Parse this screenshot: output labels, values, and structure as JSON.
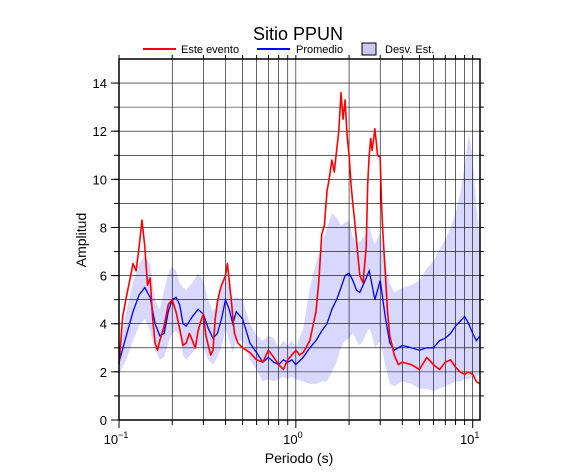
{
  "chart_data": {
    "type": "line",
    "title": "Sitio PPUN",
    "xlabel": "Periodo (s)",
    "ylabel": "Amplitud",
    "x_scale": "log",
    "xlim": [
      0.1,
      11
    ],
    "ylim": [
      0,
      15
    ],
    "y_ticks": [
      0,
      2,
      4,
      6,
      8,
      10,
      12,
      14
    ],
    "y_tick_labels": [
      "0",
      "2",
      "4",
      "6",
      "8",
      "10",
      "12",
      "14"
    ],
    "x_ticks": [
      0.1,
      1,
      10
    ],
    "x_tick_labels": [
      {
        "base": "10",
        "exp": "−1"
      },
      {
        "base": "10",
        "exp": "0"
      },
      {
        "base": "10",
        "exp": "1"
      }
    ],
    "grid": true,
    "legend_position": "top",
    "legend": {
      "event_label": "Este evento",
      "mean_label": "Promedio",
      "std_label": "Desv. Est."
    },
    "colors": {
      "event": "#ff0000",
      "mean": "#0000ff",
      "std_fill": "#d8d8ff",
      "std_legend_fill": "#c8c8f0",
      "grid": "#000000"
    },
    "series": [
      {
        "name": "Este evento",
        "x": [
          0.1,
          0.105,
          0.11,
          0.115,
          0.12,
          0.125,
          0.13,
          0.135,
          0.14,
          0.145,
          0.15,
          0.155,
          0.16,
          0.165,
          0.17,
          0.18,
          0.19,
          0.2,
          0.21,
          0.22,
          0.23,
          0.24,
          0.25,
          0.26,
          0.27,
          0.28,
          0.29,
          0.3,
          0.31,
          0.32,
          0.33,
          0.34,
          0.35,
          0.36,
          0.37,
          0.38,
          0.39,
          0.4,
          0.41,
          0.42,
          0.43,
          0.44,
          0.45,
          0.47,
          0.5,
          0.55,
          0.6,
          0.65,
          0.7,
          0.75,
          0.8,
          0.85,
          0.9,
          0.95,
          1.0,
          1.05,
          1.1,
          1.2,
          1.3,
          1.35,
          1.4,
          1.45,
          1.5,
          1.55,
          1.6,
          1.65,
          1.7,
          1.75,
          1.8,
          1.85,
          1.9,
          1.95,
          2.0,
          2.05,
          2.1,
          2.15,
          2.2,
          2.3,
          2.4,
          2.5,
          2.55,
          2.6,
          2.65,
          2.7,
          2.8,
          2.9,
          3.0,
          3.05,
          3.1,
          3.2,
          3.3,
          3.4,
          3.5,
          3.6,
          3.8,
          4.0,
          4.5,
          5.0,
          5.5,
          6.0,
          6.5,
          7.0,
          7.5,
          8.0,
          8.5,
          9.0,
          9.5,
          10.0,
          10.5,
          11.0
        ],
        "y": [
          2.3,
          4.3,
          5.1,
          5.8,
          6.5,
          6.2,
          7.2,
          8.3,
          7.2,
          5.6,
          5.9,
          4.2,
          3.2,
          2.9,
          3.3,
          3.9,
          4.8,
          5.0,
          4.5,
          3.8,
          3.1,
          3.2,
          3.6,
          3.3,
          3.0,
          3.7,
          4.1,
          4.4,
          3.5,
          3.1,
          2.7,
          2.9,
          4.2,
          4.9,
          5.3,
          5.6,
          5.8,
          6.0,
          6.5,
          5.8,
          5.1,
          4.3,
          3.6,
          3.2,
          3.0,
          2.8,
          2.5,
          2.4,
          2.9,
          2.6,
          2.3,
          2.1,
          2.5,
          2.7,
          2.9,
          2.7,
          2.8,
          3.3,
          4.5,
          5.8,
          7.7,
          8.1,
          9.5,
          10.1,
          10.8,
          10.3,
          11.2,
          12.0,
          13.6,
          12.5,
          13.3,
          11.8,
          11.0,
          9.8,
          9.0,
          8.3,
          7.5,
          6.0,
          5.7,
          7.2,
          9.8,
          11.0,
          11.7,
          11.2,
          12.1,
          11.0,
          10.9,
          9.0,
          7.9,
          6.2,
          4.5,
          3.5,
          3.1,
          2.7,
          2.3,
          2.4,
          2.3,
          2.1,
          2.6,
          2.3,
          2.1,
          2.4,
          2.5,
          2.2,
          2.0,
          1.9,
          2.0,
          1.9,
          1.6,
          1.5
        ]
      },
      {
        "name": "Promedio",
        "x": [
          0.1,
          0.11,
          0.12,
          0.13,
          0.14,
          0.15,
          0.16,
          0.17,
          0.18,
          0.19,
          0.2,
          0.21,
          0.22,
          0.23,
          0.24,
          0.26,
          0.28,
          0.3,
          0.32,
          0.34,
          0.36,
          0.38,
          0.4,
          0.42,
          0.44,
          0.46,
          0.5,
          0.55,
          0.6,
          0.65,
          0.7,
          0.75,
          0.8,
          0.85,
          0.9,
          0.95,
          1.0,
          1.1,
          1.2,
          1.3,
          1.4,
          1.5,
          1.6,
          1.7,
          1.8,
          1.9,
          2.0,
          2.1,
          2.2,
          2.3,
          2.4,
          2.5,
          2.6,
          2.7,
          2.8,
          3.0,
          3.2,
          3.4,
          3.6,
          4.0,
          4.5,
          5.0,
          5.5,
          6.0,
          6.5,
          7.0,
          7.5,
          8.0,
          8.5,
          9.0,
          9.5,
          10.0,
          10.5,
          11.0
        ],
        "y": [
          2.4,
          3.5,
          4.5,
          5.2,
          5.5,
          5.1,
          4.0,
          3.5,
          3.6,
          4.5,
          5.0,
          5.1,
          4.8,
          4.0,
          3.9,
          4.3,
          4.6,
          4.4,
          3.8,
          3.4,
          3.6,
          4.2,
          5.0,
          4.6,
          4.0,
          4.5,
          4.2,
          3.2,
          2.8,
          2.4,
          2.6,
          2.4,
          2.3,
          2.5,
          2.4,
          2.5,
          2.3,
          2.6,
          3.0,
          3.3,
          3.7,
          4.0,
          4.6,
          5.0,
          5.5,
          6.0,
          6.1,
          5.8,
          5.4,
          5.3,
          5.6,
          5.9,
          6.2,
          5.6,
          5.0,
          5.8,
          4.3,
          3.2,
          2.9,
          3.1,
          3.0,
          2.9,
          3.0,
          3.0,
          3.3,
          3.4,
          3.6,
          3.9,
          4.1,
          4.3,
          4.0,
          3.6,
          3.3,
          3.5
        ]
      },
      {
        "name": "Desv. Est.",
        "x": [
          0.1,
          0.11,
          0.12,
          0.13,
          0.14,
          0.15,
          0.16,
          0.17,
          0.18,
          0.19,
          0.2,
          0.21,
          0.22,
          0.23,
          0.24,
          0.26,
          0.28,
          0.3,
          0.32,
          0.34,
          0.36,
          0.38,
          0.4,
          0.42,
          0.44,
          0.46,
          0.5,
          0.55,
          0.6,
          0.65,
          0.7,
          0.75,
          0.8,
          0.85,
          0.9,
          0.95,
          1.0,
          1.1,
          1.2,
          1.3,
          1.4,
          1.5,
          1.6,
          1.7,
          1.8,
          1.9,
          2.0,
          2.1,
          2.2,
          2.3,
          2.4,
          2.5,
          2.6,
          2.7,
          2.8,
          3.0,
          3.2,
          3.4,
          3.6,
          4.0,
          4.5,
          5.0,
          5.5,
          6.0,
          6.5,
          7.0,
          7.5,
          8.0,
          8.5,
          9.0,
          9.5,
          10.0,
          10.5,
          11.0
        ],
        "upper": [
          2.9,
          4.5,
          5.7,
          6.5,
          6.8,
          6.5,
          5.0,
          4.6,
          5.4,
          6.1,
          6.4,
          6.2,
          5.7,
          5.5,
          5.4,
          5.7,
          6.1,
          5.8,
          5.0,
          4.5,
          4.8,
          5.5,
          6.1,
          5.6,
          5.0,
          5.1,
          5.0,
          4.0,
          3.5,
          3.3,
          3.5,
          3.4,
          3.0,
          3.3,
          3.1,
          3.3,
          3.0,
          3.8,
          5.5,
          6.5,
          7.3,
          8.0,
          8.6,
          8.4,
          8.1,
          8.2,
          8.3,
          7.6,
          7.4,
          7.4,
          7.6,
          7.7,
          8.1,
          7.6,
          7.3,
          7.8,
          6.5,
          5.7,
          5.3,
          5.5,
          5.6,
          5.8,
          6.3,
          6.6,
          7.1,
          7.5,
          8.0,
          8.6,
          9.4,
          10.6,
          11.9,
          10.9,
          8.9,
          7.5
        ],
        "lower": [
          1.9,
          2.5,
          3.3,
          3.9,
          4.2,
          3.7,
          2.9,
          2.5,
          2.6,
          3.2,
          3.6,
          3.7,
          3.5,
          2.7,
          2.5,
          2.8,
          3.1,
          3.0,
          2.5,
          2.3,
          2.6,
          3.0,
          3.8,
          3.3,
          2.8,
          3.3,
          3.3,
          2.5,
          2.1,
          1.6,
          1.7,
          1.6,
          1.7,
          1.8,
          1.7,
          1.8,
          1.7,
          1.6,
          1.5,
          1.5,
          1.6,
          1.6,
          2.0,
          2.4,
          3.0,
          3.3,
          3.4,
          3.6,
          3.3,
          3.1,
          3.3,
          3.6,
          3.8,
          3.5,
          3.0,
          3.3,
          2.3,
          1.5,
          1.4,
          1.6,
          1.5,
          1.3,
          1.3,
          1.2,
          1.3,
          1.4,
          1.5,
          1.6,
          1.6,
          1.7,
          1.7,
          1.8,
          1.8,
          1.9
        ]
      }
    ]
  }
}
